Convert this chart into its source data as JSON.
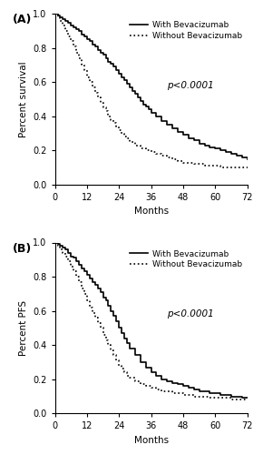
{
  "panel_A": {
    "label": "(A)",
    "ylabel": "Percent survival",
    "xlabel": "Months",
    "pvalue": "p<0.0001",
    "with_bev": {
      "x": [
        0,
        1,
        2,
        3,
        4,
        5,
        6,
        7,
        8,
        9,
        10,
        11,
        12,
        13,
        14,
        15,
        16,
        17,
        18,
        19,
        20,
        21,
        22,
        23,
        24,
        25,
        26,
        27,
        28,
        29,
        30,
        31,
        32,
        33,
        34,
        35,
        36,
        38,
        40,
        42,
        44,
        46,
        48,
        50,
        52,
        54,
        56,
        58,
        60,
        62,
        64,
        66,
        68,
        70,
        72
      ],
      "y": [
        1.0,
        0.99,
        0.98,
        0.97,
        0.96,
        0.95,
        0.93,
        0.92,
        0.91,
        0.9,
        0.88,
        0.87,
        0.85,
        0.84,
        0.82,
        0.81,
        0.79,
        0.77,
        0.76,
        0.74,
        0.72,
        0.71,
        0.69,
        0.67,
        0.65,
        0.63,
        0.61,
        0.59,
        0.57,
        0.55,
        0.53,
        0.51,
        0.49,
        0.47,
        0.46,
        0.44,
        0.42,
        0.4,
        0.37,
        0.35,
        0.33,
        0.31,
        0.29,
        0.27,
        0.26,
        0.24,
        0.23,
        0.22,
        0.21,
        0.2,
        0.19,
        0.18,
        0.17,
        0.16,
        0.15
      ]
    },
    "without_bev": {
      "x": [
        0,
        1,
        2,
        3,
        4,
        5,
        6,
        7,
        8,
        9,
        10,
        11,
        12,
        13,
        14,
        15,
        16,
        17,
        18,
        19,
        20,
        21,
        22,
        23,
        24,
        25,
        26,
        27,
        28,
        30,
        32,
        34,
        36,
        38,
        40,
        42,
        44,
        46,
        48,
        50,
        52,
        54,
        56,
        58,
        60,
        62,
        64,
        66,
        68,
        70,
        72
      ],
      "y": [
        1.0,
        0.98,
        0.96,
        0.93,
        0.9,
        0.87,
        0.84,
        0.81,
        0.77,
        0.74,
        0.7,
        0.67,
        0.63,
        0.6,
        0.57,
        0.54,
        0.51,
        0.48,
        0.45,
        0.43,
        0.4,
        0.38,
        0.36,
        0.34,
        0.32,
        0.3,
        0.28,
        0.27,
        0.25,
        0.23,
        0.21,
        0.2,
        0.19,
        0.18,
        0.17,
        0.16,
        0.15,
        0.14,
        0.13,
        0.13,
        0.12,
        0.12,
        0.11,
        0.11,
        0.11,
        0.1,
        0.1,
        0.1,
        0.1,
        0.1,
        0.1
      ]
    }
  },
  "panel_B": {
    "label": "(B)",
    "ylabel": "Percent PFS",
    "xlabel": "Months",
    "pvalue": "p<0.0001",
    "with_bev": {
      "x": [
        0,
        1,
        2,
        3,
        4,
        5,
        6,
        7,
        8,
        9,
        10,
        11,
        12,
        13,
        14,
        15,
        16,
        17,
        18,
        19,
        20,
        21,
        22,
        23,
        24,
        25,
        26,
        27,
        28,
        30,
        32,
        34,
        36,
        38,
        40,
        42,
        44,
        46,
        48,
        50,
        52,
        54,
        56,
        58,
        60,
        62,
        64,
        66,
        68,
        70,
        72
      ],
      "y": [
        1.0,
        0.99,
        0.98,
        0.97,
        0.96,
        0.94,
        0.92,
        0.91,
        0.89,
        0.87,
        0.85,
        0.83,
        0.81,
        0.79,
        0.77,
        0.75,
        0.73,
        0.71,
        0.68,
        0.66,
        0.63,
        0.6,
        0.57,
        0.54,
        0.5,
        0.47,
        0.44,
        0.41,
        0.38,
        0.34,
        0.3,
        0.27,
        0.24,
        0.22,
        0.2,
        0.19,
        0.18,
        0.17,
        0.16,
        0.15,
        0.14,
        0.13,
        0.13,
        0.12,
        0.12,
        0.11,
        0.11,
        0.1,
        0.1,
        0.09,
        0.09
      ]
    },
    "without_bev": {
      "x": [
        0,
        1,
        2,
        3,
        4,
        5,
        6,
        7,
        8,
        9,
        10,
        11,
        12,
        13,
        14,
        15,
        16,
        17,
        18,
        19,
        20,
        21,
        22,
        23,
        24,
        25,
        26,
        27,
        28,
        30,
        32,
        34,
        36,
        38,
        40,
        42,
        44,
        46,
        48,
        50,
        52,
        54,
        56,
        58,
        60,
        62,
        64,
        66,
        68,
        70,
        72
      ],
      "y": [
        1.0,
        0.98,
        0.96,
        0.94,
        0.92,
        0.89,
        0.86,
        0.83,
        0.8,
        0.77,
        0.73,
        0.7,
        0.66,
        0.62,
        0.59,
        0.56,
        0.53,
        0.5,
        0.46,
        0.43,
        0.4,
        0.37,
        0.34,
        0.31,
        0.28,
        0.26,
        0.24,
        0.22,
        0.21,
        0.19,
        0.17,
        0.16,
        0.15,
        0.14,
        0.13,
        0.13,
        0.12,
        0.12,
        0.11,
        0.11,
        0.1,
        0.1,
        0.1,
        0.09,
        0.09,
        0.09,
        0.09,
        0.08,
        0.08,
        0.08,
        0.08
      ]
    }
  },
  "xticks": [
    0,
    12,
    24,
    36,
    48,
    60,
    72
  ],
  "yticks": [
    0.0,
    0.2,
    0.4,
    0.6,
    0.8,
    1.0
  ],
  "xlim": [
    0,
    72
  ],
  "ylim": [
    0.0,
    1.05
  ],
  "line_color_with": "#000000",
  "line_color_without": "#000000",
  "line_style_with": "-",
  "line_style_without": ":",
  "line_width": 1.2,
  "legend_fontsize": 6.5,
  "label_fontsize": 7.5,
  "tick_fontsize": 7,
  "pvalue_fontsize": 7.5,
  "panel_label_fontsize": 9
}
